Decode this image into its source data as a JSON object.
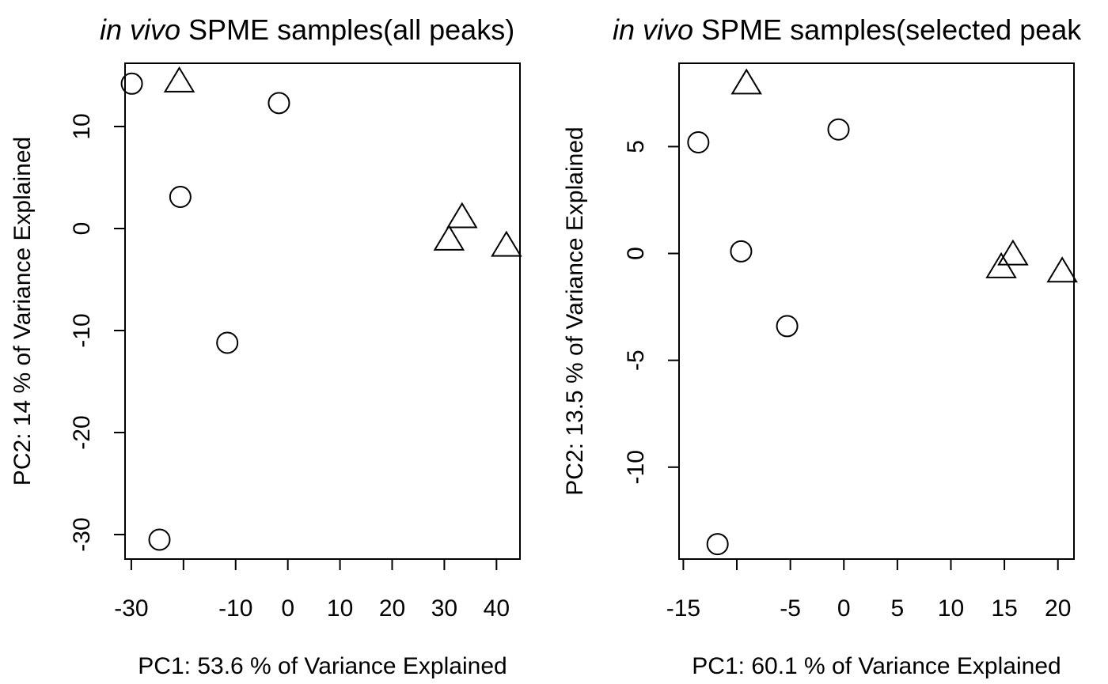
{
  "chart_data": [
    {
      "type": "scatter",
      "title_italic": "in vivo",
      "title_rest": " SPME samples(all peaks)",
      "xlabel": "PC1: 53.6 % of Variance Explained",
      "ylabel": "PC2: 14 % of Variance Explained",
      "xlim": [
        -31.2,
        44.5
      ],
      "ylim": [
        -32.4,
        16.2
      ],
      "x_ticks": [
        -30,
        -20,
        -10,
        0,
        10,
        20,
        30,
        40
      ],
      "x_tick_labels": [
        "-30",
        "",
        "-10",
        "0",
        "10",
        "20",
        "30",
        "40"
      ],
      "y_ticks": [
        -30,
        -20,
        -10,
        0,
        10
      ],
      "y_tick_labels": [
        "-30",
        "-20",
        "-10",
        "0",
        "10"
      ],
      "grid": false,
      "legend": "none",
      "series": [
        {
          "marker": "circle",
          "x": [
            -29.9,
            -20.6,
            -11.6,
            -1.7,
            -24.6
          ],
          "y": [
            14.2,
            3.1,
            -11.2,
            12.3,
            -30.5
          ]
        },
        {
          "marker": "triangle",
          "x": [
            -20.8,
            33.4,
            30.9,
            41.9
          ],
          "y": [
            14.3,
            1.0,
            -1.2,
            -1.8
          ]
        }
      ]
    },
    {
      "type": "scatter",
      "title_italic": "in vivo",
      "title_rest": " SPME samples(selected peak",
      "xlabel": "PC1: 60.1 % of Variance Explained",
      "ylabel": "PC2: 13.5 % of Variance Explained",
      "xlim": [
        -15.4,
        21.5
      ],
      "ylim": [
        -14.3,
        8.9
      ],
      "x_ticks": [
        -15,
        -10,
        -5,
        0,
        5,
        10,
        15,
        20
      ],
      "x_tick_labels": [
        "-15",
        "",
        "-5",
        "0",
        "5",
        "10",
        "15",
        "20"
      ],
      "y_ticks": [
        -10,
        -5,
        0,
        5
      ],
      "y_tick_labels": [
        "-10",
        "-5",
        "0",
        "5"
      ],
      "grid": false,
      "legend": "none",
      "series": [
        {
          "marker": "circle",
          "x": [
            -13.6,
            -9.6,
            -5.3,
            -0.5,
            -11.8
          ],
          "y": [
            5.2,
            0.1,
            -3.4,
            5.8,
            -13.6
          ]
        },
        {
          "marker": "triangle",
          "x": [
            -9.1,
            15.8,
            14.7,
            20.4
          ],
          "y": [
            7.9,
            -0.1,
            -0.7,
            -0.9
          ]
        }
      ]
    }
  ]
}
